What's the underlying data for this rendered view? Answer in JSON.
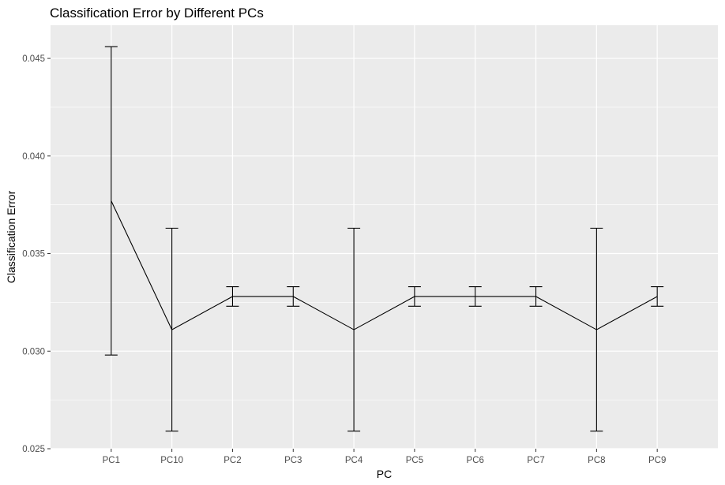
{
  "chart_data": {
    "type": "line",
    "title": "Classification Error by Different PCs",
    "xlabel": "PC",
    "ylabel": "Classification Error",
    "categories": [
      "PC1",
      "PC10",
      "PC2",
      "PC3",
      "PC4",
      "PC5",
      "PC6",
      "PC7",
      "PC8",
      "PC9"
    ],
    "values": [
      0.0377,
      0.0311,
      0.0328,
      0.0328,
      0.0311,
      0.0328,
      0.0328,
      0.0328,
      0.0311,
      0.0328
    ],
    "error_lower": [
      0.0298,
      0.0259,
      0.0323,
      0.0323,
      0.0259,
      0.0323,
      0.0323,
      0.0323,
      0.0259,
      0.0323
    ],
    "error_upper": [
      0.0456,
      0.0363,
      0.0333,
      0.0333,
      0.0363,
      0.0333,
      0.0333,
      0.0333,
      0.0363,
      0.0333
    ],
    "ylim": [
      0.025,
      0.0467
    ],
    "y_ticks": [
      0.025,
      0.03,
      0.035,
      0.04,
      0.045
    ],
    "y_tick_labels": [
      "0.025",
      "0.030",
      "0.035",
      "0.040",
      "0.045"
    ],
    "grid": true,
    "colors": {
      "panel": "#EBEBEB",
      "grid": "#FFFFFF",
      "line": "#000000"
    }
  }
}
